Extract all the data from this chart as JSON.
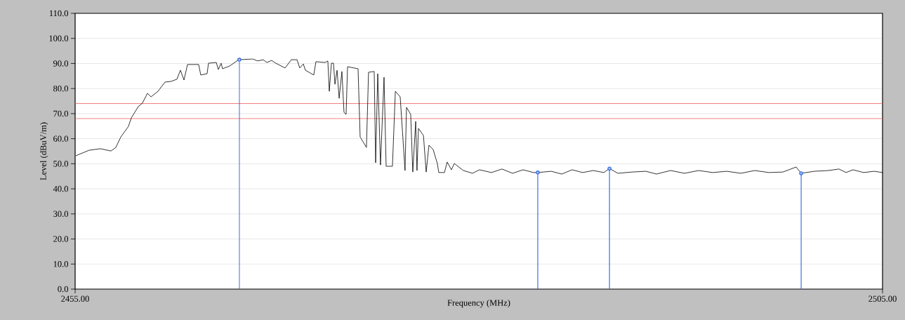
{
  "chart_data": {
    "type": "line",
    "xlabel": "Frequency (MHz)",
    "ylabel": "Level (dBuV/m)",
    "xlim": [
      2455,
      2505
    ],
    "ylim": [
      0,
      110
    ],
    "xticks": [
      {
        "value": 2455,
        "label": "2455.00"
      },
      {
        "value": 2505,
        "label": "2505.00"
      }
    ],
    "yticks": [
      {
        "value": 0,
        "label": "0.0"
      },
      {
        "value": 10,
        "label": "10.0"
      },
      {
        "value": 20,
        "label": "20.0"
      },
      {
        "value": 30,
        "label": "30.0"
      },
      {
        "value": 40,
        "label": "40.0"
      },
      {
        "value": 50,
        "label": "50.0"
      },
      {
        "value": 60,
        "label": "60.0"
      },
      {
        "value": 70,
        "label": "70.0"
      },
      {
        "value": 80,
        "label": "80.0"
      },
      {
        "value": 90,
        "label": "90.0"
      },
      {
        "value": 100,
        "label": "100.0"
      },
      {
        "value": 110,
        "label": "110.0"
      }
    ],
    "grid": "y",
    "line_style": "solid",
    "ref_lines": [
      {
        "axis": "y",
        "value": 74,
        "color": "#f06060"
      },
      {
        "axis": "y",
        "value": 68,
        "color": "#f06060"
      }
    ],
    "series": [
      {
        "color": "#000000",
        "marker": "none",
        "x": [
          2455.04,
          2455.87,
          2456.57,
          2457.22,
          2457.52,
          2457.83,
          2458.3,
          2458.48,
          2458.91,
          2459.17,
          2459.48,
          2459.7,
          2460.13,
          2460.57,
          2460.91,
          2461.3,
          2461.52,
          2461.74,
          2461.96,
          2462.65,
          2462.78,
          2463.17,
          2463.26,
          2463.74,
          2463.87,
          2464.04,
          2464.13,
          2464.57,
          2465.13,
          2466.0,
          2466.3,
          2466.65,
          2466.87,
          2467.17,
          2467.43,
          2468.0,
          2468.39,
          2468.74,
          2468.91,
          2469.13,
          2469.26,
          2469.78,
          2469.91,
          2470.48,
          2470.65,
          2470.74,
          2470.87,
          2471.0,
          2471.09,
          2471.22,
          2471.35,
          2471.52,
          2471.65,
          2471.78,
          2471.87,
          2472.52,
          2472.65,
          2473.04,
          2473.17,
          2473.52,
          2473.61,
          2473.74,
          2473.91,
          2474.13,
          2474.26,
          2474.65,
          2474.83,
          2475.13,
          2475.43,
          2475.52,
          2475.78,
          2475.91,
          2476.09,
          2476.17,
          2476.26,
          2476.57,
          2476.74,
          2476.91,
          2477.17,
          2477.43,
          2477.52,
          2477.87,
          2478.04,
          2478.3,
          2478.48,
          2479.04,
          2479.61,
          2480.04,
          2480.78,
          2481.43,
          2482.09,
          2482.74,
          2483.39,
          2483.65,
          2484.48,
          2485.13,
          2485.78,
          2486.43,
          2487.09,
          2487.74,
          2488.09,
          2488.61,
          2489.48,
          2490.35,
          2491.0,
          2491.87,
          2492.74,
          2493.61,
          2494.48,
          2495.35,
          2496.22,
          2497.09,
          2497.96,
          2498.83,
          2499.65,
          2499.96,
          2500.78,
          2501.65,
          2502.3,
          2502.74,
          2503.17,
          2503.83,
          2504.48,
          2505.0
        ],
        "values": [
          53.2,
          55.4,
          56.0,
          55.1,
          56.5,
          60.7,
          64.9,
          68.3,
          72.8,
          74.2,
          78.1,
          76.7,
          78.9,
          82.6,
          82.8,
          83.7,
          87.3,
          83.4,
          89.6,
          89.6,
          85.4,
          85.9,
          90.1,
          90.4,
          87.6,
          90.1,
          87.9,
          89.0,
          91.5,
          91.8,
          91.0,
          91.5,
          90.4,
          91.2,
          90.1,
          88.2,
          91.5,
          91.5,
          88.2,
          89.8,
          87.3,
          85.4,
          90.7,
          90.4,
          91.0,
          78.9,
          90.1,
          90.1,
          81.7,
          87.3,
          76.1,
          86.8,
          70.5,
          69.7,
          88.7,
          87.9,
          60.7,
          56.5,
          86.5,
          86.8,
          50.4,
          85.9,
          49.5,
          84.5,
          49.0,
          49.0,
          78.9,
          76.7,
          47.3,
          72.5,
          69.7,
          46.7,
          66.9,
          47.3,
          64.1,
          61.3,
          46.7,
          57.4,
          55.7,
          50.1,
          46.5,
          46.5,
          50.7,
          47.6,
          50.1,
          47.3,
          46.2,
          47.6,
          46.5,
          47.9,
          46.2,
          47.6,
          46.5,
          46.5,
          47.0,
          45.9,
          47.6,
          46.5,
          47.3,
          46.5,
          48.1,
          46.2,
          46.7,
          47.0,
          45.9,
          47.3,
          46.2,
          47.3,
          46.5,
          47.0,
          46.2,
          47.3,
          46.5,
          46.7,
          48.7,
          46.2,
          47.0,
          47.3,
          47.9,
          46.5,
          47.6,
          46.5,
          47.0,
          46.5
        ]
      },
      {
        "type": "lollipop",
        "color": "#2a64e0",
        "marker": "circle",
        "x": [
          2465.17,
          2483.65,
          2488.09,
          2499.96
        ],
        "values": [
          91.5,
          46.5,
          48.1,
          46.2
        ]
      }
    ]
  }
}
